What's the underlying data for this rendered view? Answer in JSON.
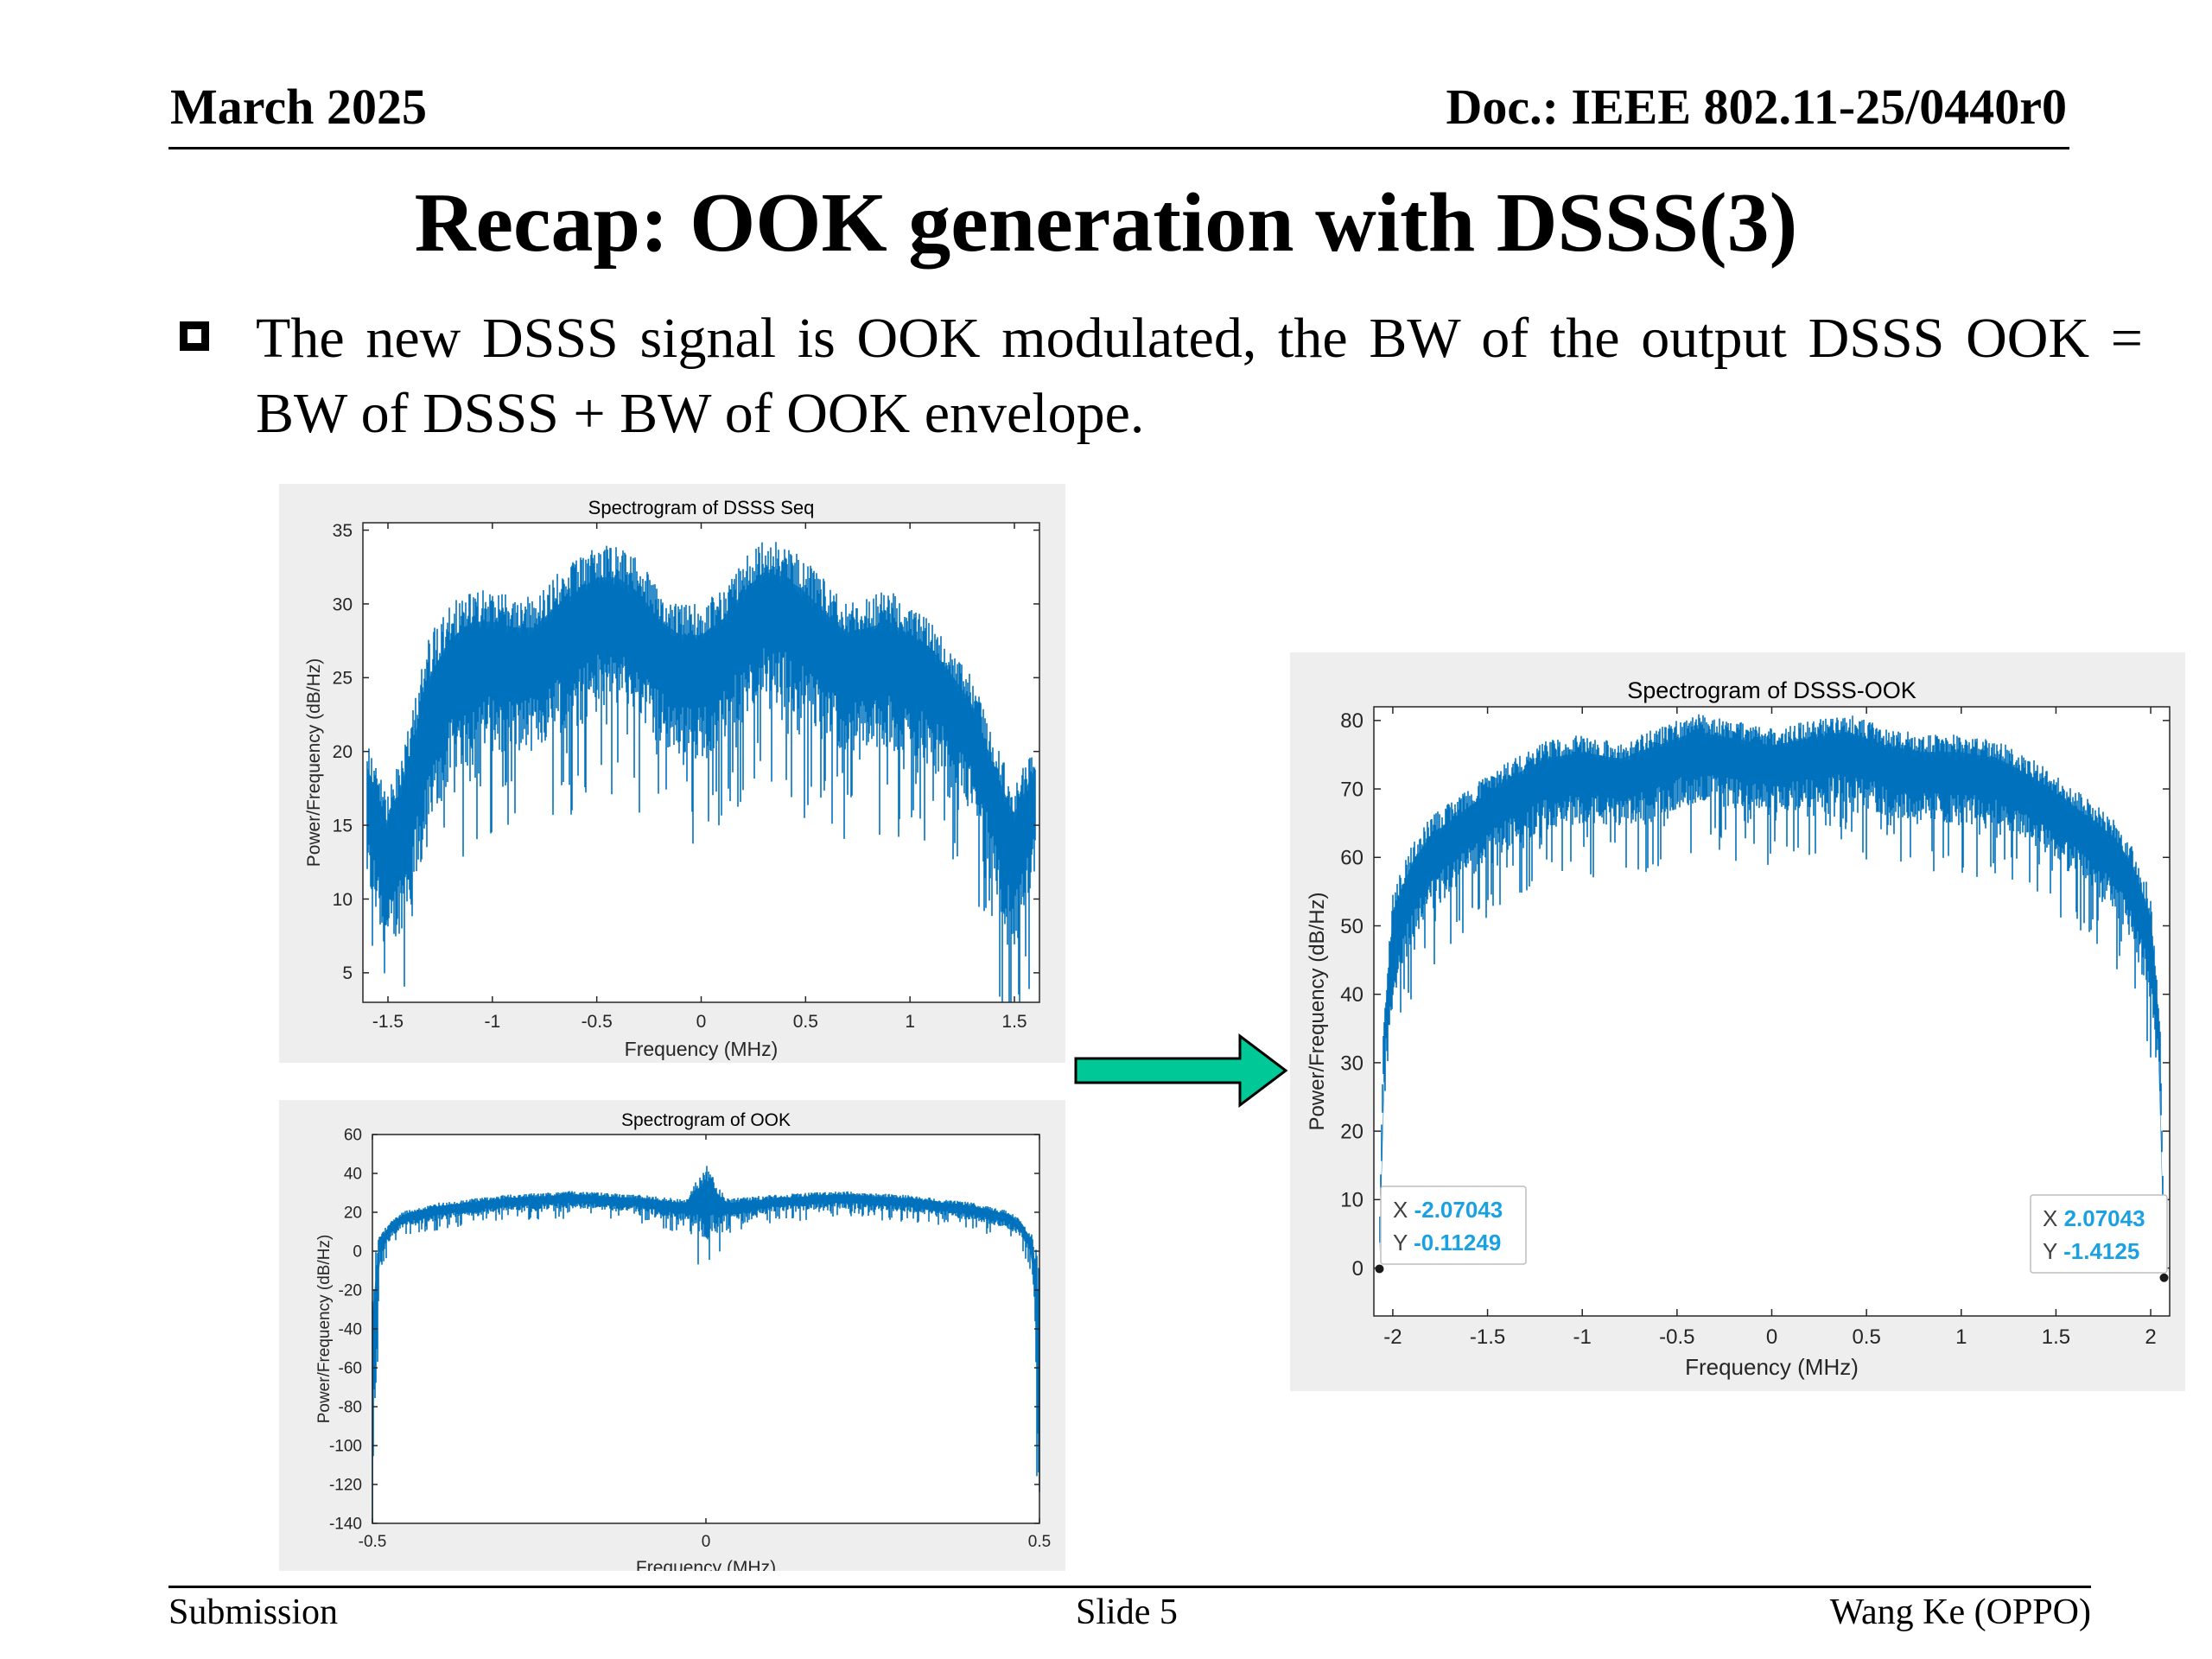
{
  "header": {
    "date": "March 2025",
    "doc": "Doc.: IEEE 802.11-25/0440r0"
  },
  "title": "Recap: OOK generation with DSSS(3)",
  "bullet": "The new DSSS signal is OOK modulated, the BW of the output DSSS OOK = BW of DSSS + BW of OOK envelope.",
  "footer": {
    "left": "Submission",
    "center": "Slide 5",
    "right": "Wang Ke (OPPO)"
  },
  "colors": {
    "series": "#0072bd",
    "arrow_fill": "#00c896",
    "datatip_value": "#1ba1e2",
    "panel_bg": "#eeeeee"
  },
  "chart_data": [
    {
      "type": "line",
      "title": "Spectrogram of DSSS Seq",
      "xlabel": "Frequency (MHz)",
      "ylabel": "Power/Frequency (dB/Hz)",
      "xlim": [
        -1.62,
        1.62
      ],
      "ylim": [
        3,
        35.5
      ],
      "xticks": [
        -1.5,
        -1,
        -0.5,
        0,
        0.5,
        1,
        1.5
      ],
      "xtick_labels": [
        "-1.5",
        "-1",
        "-0.5",
        "0",
        "0.5",
        "1",
        "1.5"
      ],
      "yticks": [
        5,
        10,
        15,
        20,
        25,
        30,
        35
      ],
      "ytick_labels": [
        "5",
        "10",
        "15",
        "20",
        "25",
        "30",
        "35"
      ],
      "envelope": {
        "x": [
          -1.6,
          -1.5,
          -1.4,
          -1.3,
          -1.2,
          -1.1,
          -1.0,
          -0.9,
          -0.8,
          -0.7,
          -0.6,
          -0.5,
          -0.4,
          -0.3,
          -0.2,
          -0.1,
          0,
          0.1,
          0.2,
          0.3,
          0.4,
          0.5,
          0.6,
          0.7,
          0.8,
          0.9,
          1.0,
          1.1,
          1.2,
          1.3,
          1.4,
          1.5,
          1.6
        ],
        "upper": [
          21,
          17,
          22,
          28,
          30,
          31,
          31,
          30.5,
          30.5,
          32,
          33,
          34,
          34,
          33,
          31,
          30,
          30,
          31,
          33,
          34.5,
          34,
          33,
          31.5,
          30,
          30.5,
          31,
          30,
          29,
          27,
          25,
          21,
          18,
          21
        ],
        "lower": [
          11,
          6,
          9,
          14,
          18,
          20,
          20,
          20,
          20,
          21,
          22,
          23,
          23,
          22,
          20.5,
          19.5,
          19.5,
          20.5,
          22,
          23,
          23,
          22,
          20.5,
          20,
          20,
          20,
          19.5,
          19,
          18,
          16,
          11,
          6,
          11
        ]
      }
    },
    {
      "type": "line",
      "title": "Spectrogram of OOK",
      "xlabel": "Frequency (MHz)",
      "ylabel": "Power/Frequency (dB/Hz)",
      "xlim": [
        -0.5,
        0.5
      ],
      "ylim": [
        -140,
        60
      ],
      "xticks": [
        -0.5,
        0,
        0.5
      ],
      "xtick_labels": [
        "-0.5",
        "0",
        "0.5"
      ],
      "yticks": [
        -140,
        -120,
        -100,
        -80,
        -60,
        -40,
        -20,
        0,
        20,
        40,
        60
      ],
      "ytick_labels": [
        "-140",
        "-120",
        "-100",
        "-80",
        "-60",
        "-40",
        "-20",
        "0",
        "20",
        "40",
        "60"
      ],
      "envelope": {
        "x": [
          -0.5,
          -0.49,
          -0.47,
          -0.45,
          -0.4,
          -0.3,
          -0.2,
          -0.1,
          -0.03,
          0,
          0.03,
          0.1,
          0.2,
          0.3,
          0.4,
          0.45,
          0.47,
          0.49,
          0.5
        ],
        "upper": [
          -5,
          8,
          17,
          21,
          25,
          29,
          31,
          29,
          27,
          45,
          27,
          29,
          31,
          29,
          25,
          21,
          17,
          8,
          -5
        ],
        "lower": [
          -140,
          -5,
          8,
          12,
          16,
          20,
          22,
          20,
          15,
          5,
          15,
          20,
          22,
          20,
          16,
          12,
          8,
          -5,
          -140
        ]
      }
    },
    {
      "type": "line",
      "title": "Spectrogram of DSSS-OOK",
      "xlabel": "Frequency (MHz)",
      "ylabel": "Power/Frequency (dB/Hz)",
      "xlim": [
        -2.1,
        2.1
      ],
      "ylim": [
        -7,
        82
      ],
      "xticks": [
        -2,
        -1.5,
        -1,
        -0.5,
        0,
        0.5,
        1,
        1.5,
        2
      ],
      "xtick_labels": [
        "-2",
        "-1.5",
        "-1",
        "-0.5",
        "0",
        "0.5",
        "1",
        "1.5",
        "2"
      ],
      "yticks": [
        0,
        10,
        20,
        30,
        40,
        50,
        60,
        70,
        80
      ],
      "ytick_labels": [
        "0",
        "10",
        "20",
        "30",
        "40",
        "50",
        "60",
        "70",
        "80"
      ],
      "envelope": {
        "x": [
          -2.07,
          -2.05,
          -2.0,
          -1.9,
          -1.8,
          -1.6,
          -1.4,
          -1.2,
          -1.0,
          -0.8,
          -0.6,
          -0.4,
          -0.2,
          0,
          0.2,
          0.4,
          0.6,
          0.8,
          1.0,
          1.2,
          1.4,
          1.6,
          1.8,
          1.9,
          2.0,
          2.05,
          2.07
        ],
        "upper": [
          5,
          35,
          55,
          62,
          66,
          70,
          74,
          77,
          78,
          77,
          79,
          81,
          80,
          79,
          80,
          81,
          79,
          78,
          78,
          77,
          74,
          70,
          66,
          62,
          55,
          35,
          5
        ],
        "lower": [
          0,
          28,
          38,
          48,
          52,
          57,
          61,
          64,
          65,
          64,
          66,
          68,
          67,
          66,
          67,
          68,
          66,
          65,
          65,
          64,
          61,
          57,
          52,
          48,
          38,
          28,
          0
        ]
      },
      "datatips": [
        {
          "x_label": "X",
          "x": "-2.07043",
          "y_label": "Y",
          "y": "-0.11249"
        },
        {
          "x_label": "X",
          "x": "2.07043",
          "y_label": "Y",
          "y": "-1.4125"
        }
      ],
      "datatip_points": [
        {
          "x": -2.07043,
          "y": -0.11249
        },
        {
          "x": 2.07043,
          "y": -1.4125
        }
      ]
    }
  ]
}
